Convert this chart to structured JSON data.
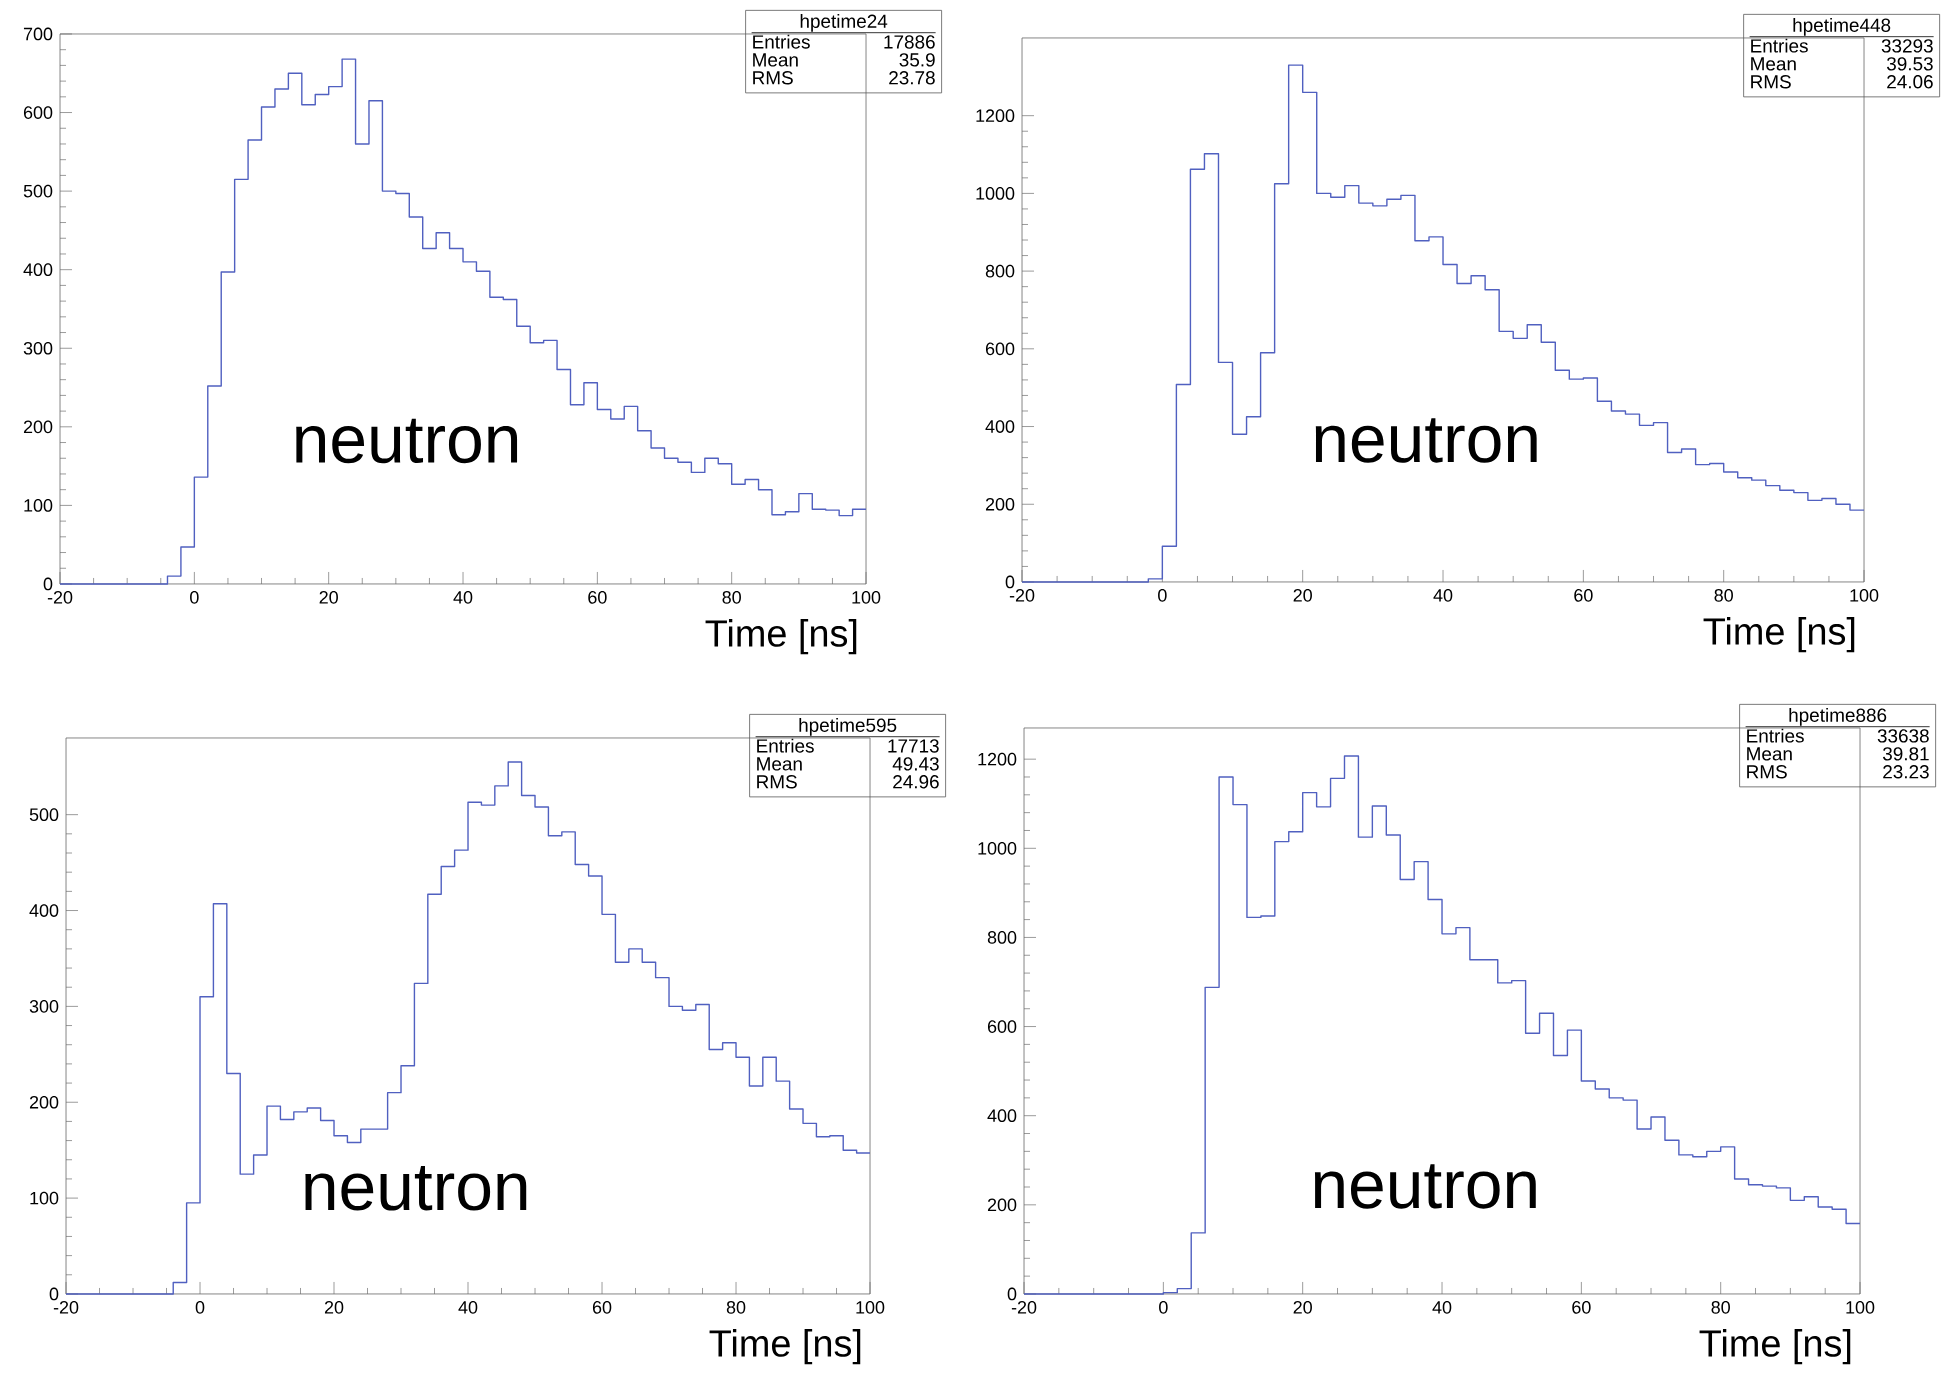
{
  "chart_data": [
    {
      "type": "histogram",
      "xlabel": "Time [ns]",
      "color": "#5060c0",
      "bins": [
        -20,
        -18,
        -16,
        -14,
        -12,
        -10,
        -8,
        -6,
        -4,
        -2,
        0,
        2,
        4,
        6,
        8,
        10,
        12,
        14,
        16,
        18,
        20,
        22,
        24,
        26,
        28,
        30,
        32,
        34,
        36,
        38,
        40,
        42,
        44,
        46,
        48,
        50,
        52,
        54,
        56,
        58,
        60,
        62,
        64,
        66,
        68,
        70,
        72,
        74,
        76,
        78,
        80,
        82,
        84,
        86,
        88,
        90,
        92,
        94,
        96,
        98,
        100
      ],
      "values": [
        0,
        0,
        0,
        0,
        0,
        0,
        0,
        0,
        10,
        47,
        136,
        252,
        397,
        515,
        565,
        607,
        630,
        650,
        610,
        623,
        633,
        668,
        560,
        615,
        500,
        497,
        467,
        427,
        447,
        427,
        410,
        398,
        365,
        362,
        328,
        307,
        310,
        273,
        228,
        256,
        222,
        210,
        226,
        195,
        173,
        160,
        155,
        142,
        160,
        153,
        127,
        133,
        120,
        88,
        92,
        115,
        95,
        94,
        87,
        95
      ],
      "xlim": [
        -20,
        100
      ],
      "ylim": [
        0,
        700
      ],
      "xticks": [
        -20,
        0,
        20,
        40,
        60,
        80,
        100
      ],
      "yticks": [
        0,
        100,
        200,
        300,
        400,
        500,
        600,
        700
      ],
      "annotations": [
        "hpetime24",
        "Entries",
        "17886",
        "Mean",
        "35.9",
        "RMS",
        "23.78",
        "neutron"
      ]
    },
    {
      "type": "histogram",
      "xlabel": "Time [ns]",
      "color": "#5060c0",
      "bins": [
        -20,
        -18,
        -16,
        -14,
        -12,
        -10,
        -8,
        -6,
        -4,
        -2,
        0,
        2,
        4,
        6,
        8,
        10,
        12,
        14,
        16,
        18,
        20,
        22,
        24,
        26,
        28,
        30,
        32,
        34,
        36,
        38,
        40,
        42,
        44,
        46,
        48,
        50,
        52,
        54,
        56,
        58,
        60,
        62,
        64,
        66,
        68,
        70,
        72,
        74,
        76,
        78,
        80,
        82,
        84,
        86,
        88,
        90,
        92,
        94,
        96,
        98,
        100
      ],
      "values": [
        0,
        0,
        0,
        0,
        0,
        0,
        0,
        0,
        0,
        8,
        92,
        508,
        1062,
        1102,
        565,
        380,
        425,
        590,
        1025,
        1330,
        1260,
        1000,
        990,
        1020,
        975,
        968,
        985,
        995,
        878,
        888,
        817,
        768,
        788,
        752,
        645,
        627,
        662,
        617,
        545,
        522,
        525,
        465,
        440,
        432,
        403,
        410,
        333,
        342,
        302,
        305,
        283,
        268,
        262,
        248,
        236,
        230,
        210,
        215,
        200,
        185
      ],
      "xlim": [
        -20,
        100
      ],
      "ylim": [
        0,
        1400
      ],
      "xticks": [
        -20,
        0,
        20,
        40,
        60,
        80,
        100
      ],
      "yticks": [
        0,
        200,
        400,
        600,
        800,
        1000,
        1200
      ],
      "annotations": [
        "hpetime448",
        "Entries",
        "33293",
        "Mean",
        "39.53",
        "RMS",
        "24.06",
        "neutron"
      ]
    },
    {
      "type": "histogram",
      "xlabel": "Time [ns]",
      "color": "#5060c0",
      "bins": [
        -20,
        -18,
        -16,
        -14,
        -12,
        -10,
        -8,
        -6,
        -4,
        -2,
        0,
        2,
        4,
        6,
        8,
        10,
        12,
        14,
        16,
        18,
        20,
        22,
        24,
        26,
        28,
        30,
        32,
        34,
        36,
        38,
        40,
        42,
        44,
        46,
        48,
        50,
        52,
        54,
        56,
        58,
        60,
        62,
        64,
        66,
        68,
        70,
        72,
        74,
        76,
        78,
        80,
        82,
        84,
        86,
        88,
        90,
        92,
        94,
        96,
        98,
        100
      ],
      "values": [
        0,
        0,
        0,
        0,
        0,
        0,
        0,
        0,
        12,
        95,
        310,
        407,
        230,
        125,
        145,
        196,
        182,
        190,
        194,
        181,
        165,
        158,
        172,
        172,
        210,
        238,
        324,
        417,
        446,
        463,
        513,
        510,
        530,
        555,
        520,
        508,
        478,
        482,
        448,
        436,
        396,
        346,
        360,
        346,
        330,
        300,
        296,
        302,
        255,
        262,
        247,
        217,
        247,
        222,
        193,
        178,
        164,
        165,
        150,
        147
      ],
      "xlim": [
        -20,
        100
      ],
      "ylim": [
        0,
        580
      ],
      "xticks": [
        -20,
        0,
        20,
        40,
        60,
        80,
        100
      ],
      "yticks": [
        0,
        100,
        200,
        300,
        400,
        500
      ],
      "annotations": [
        "hpetime595",
        "Entries",
        "17713",
        "Mean",
        "49.43",
        "RMS",
        "24.96",
        "neutron"
      ]
    },
    {
      "type": "histogram",
      "xlabel": "Time [ns]",
      "color": "#5060c0",
      "bins": [
        -20,
        -18,
        -16,
        -14,
        -12,
        -10,
        -8,
        -6,
        -4,
        -2,
        0,
        2,
        4,
        6,
        8,
        10,
        12,
        14,
        16,
        18,
        20,
        22,
        24,
        26,
        28,
        30,
        32,
        34,
        36,
        38,
        40,
        42,
        44,
        46,
        48,
        50,
        52,
        54,
        56,
        58,
        60,
        62,
        64,
        66,
        68,
        70,
        72,
        74,
        76,
        78,
        80,
        82,
        84,
        86,
        88,
        90,
        92,
        94,
        96,
        98,
        100
      ],
      "values": [
        0,
        0,
        0,
        0,
        0,
        0,
        0,
        0,
        0,
        0,
        3,
        12,
        137,
        688,
        1160,
        1098,
        845,
        848,
        1015,
        1037,
        1125,
        1093,
        1157,
        1207,
        1025,
        1095,
        1030,
        930,
        970,
        885,
        808,
        822,
        750,
        750,
        698,
        703,
        585,
        630,
        535,
        592,
        478,
        460,
        440,
        435,
        370,
        397,
        345,
        312,
        308,
        320,
        330,
        258,
        245,
        242,
        238,
        210,
        218,
        195,
        190,
        158
      ],
      "xlim": [
        -20,
        100
      ],
      "ylim": [
        0,
        1270
      ],
      "xticks": [
        -20,
        0,
        20,
        40,
        60,
        80,
        100
      ],
      "yticks": [
        0,
        200,
        400,
        600,
        800,
        1000,
        1200
      ],
      "annotations": [
        "hpetime886",
        "Entries",
        "33638",
        "Mean",
        "39.81",
        "RMS",
        "23.23",
        "neutron"
      ]
    }
  ]
}
